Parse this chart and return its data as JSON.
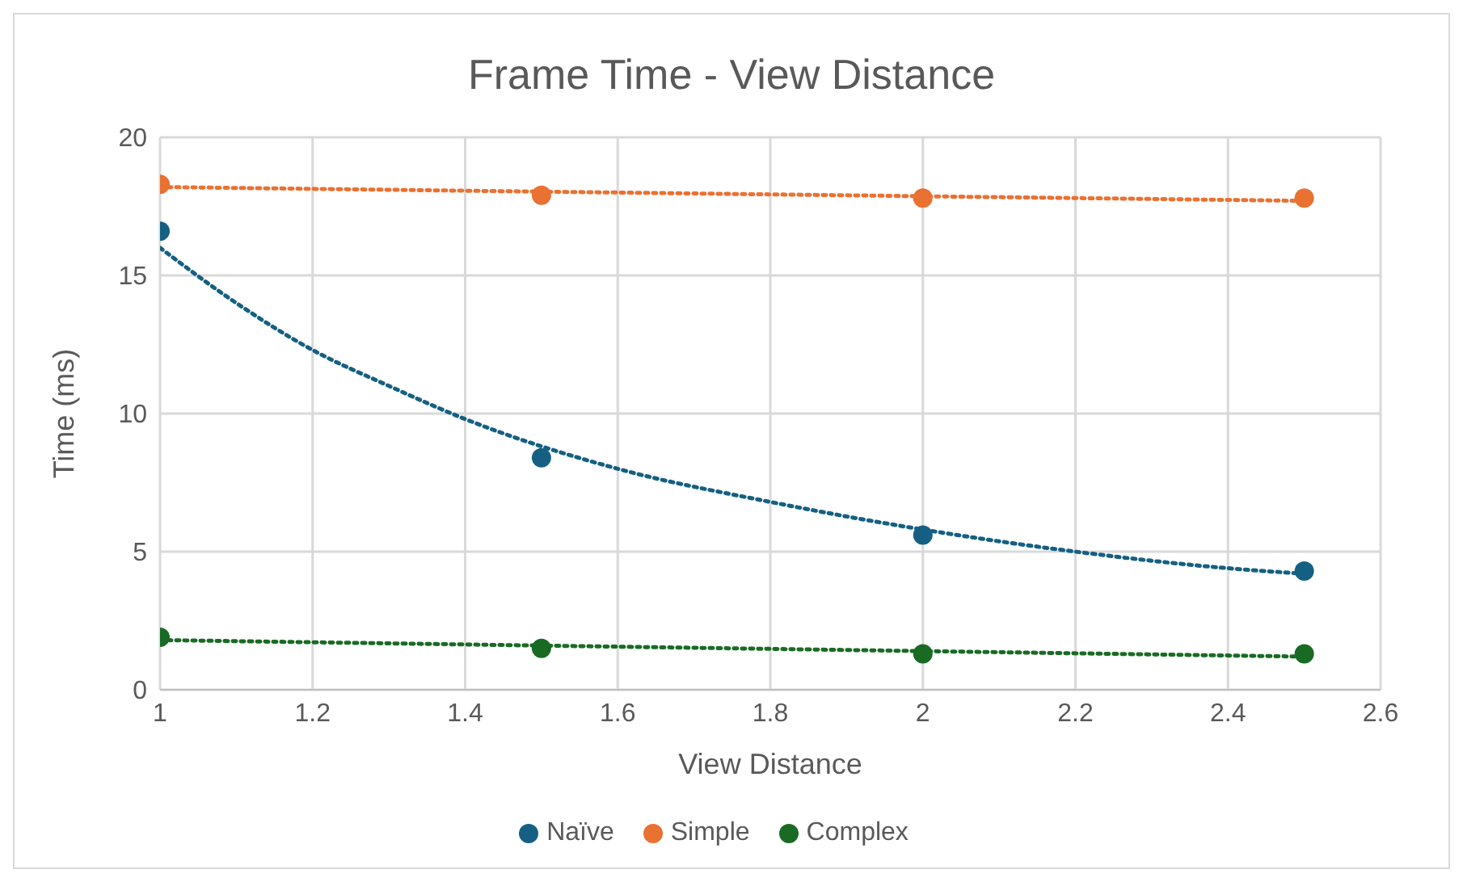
{
  "chart_data": {
    "type": "scatter",
    "title": "Frame Time - View Distance",
    "xlabel": "View Distance",
    "ylabel": "Time (ms)",
    "xlim": [
      1,
      2.6
    ],
    "xticks": [
      1,
      1.2,
      1.4,
      1.6,
      1.8,
      2,
      2.2,
      2.4,
      2.6
    ],
    "ylim": [
      0,
      20
    ],
    "yticks": [
      0,
      5,
      10,
      15,
      20
    ],
    "grid": true,
    "legend": "bottom",
    "marker": "circle",
    "series": [
      {
        "name": "Naïve",
        "color": "#156082",
        "x": [
          1,
          1.5,
          2,
          2.5
        ],
        "values": [
          16.6,
          8.4,
          5.6,
          4.3
        ]
      },
      {
        "name": "Simple",
        "color": "#e97132",
        "x": [
          1,
          1.5,
          2,
          2.5
        ],
        "values": [
          18.3,
          17.9,
          17.8,
          17.8
        ]
      },
      {
        "name": "Complex",
        "color": "#196b24",
        "x": [
          1,
          1.5,
          2,
          2.5
        ],
        "values": [
          1.9,
          1.5,
          1.3,
          1.3
        ]
      },
      {
        "type": "line",
        "color": "#156082",
        "line_style": "dotted",
        "marker": "none",
        "x": [
          1,
          1.1,
          1.2,
          1.3,
          1.4,
          1.6,
          1.8,
          2,
          2.2,
          2.4,
          2.5
        ],
        "values": [
          16,
          14,
          12.3,
          11,
          9.8,
          8.0,
          6.8,
          5.8,
          5.0,
          4.4,
          4.2
        ]
      },
      {
        "type": "line",
        "color": "#e97132",
        "line_style": "dotted",
        "marker": "none",
        "x": [
          1,
          2.5
        ],
        "values": [
          18.2,
          17.7
        ]
      },
      {
        "type": "line",
        "color": "#196b24",
        "line_style": "dotted",
        "marker": "none",
        "x": [
          1,
          2.5
        ],
        "values": [
          1.8,
          1.2
        ]
      }
    ]
  }
}
